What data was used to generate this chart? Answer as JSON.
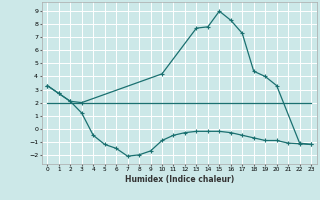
{
  "xlabel": "Humidex (Indice chaleur)",
  "xlim": [
    -0.5,
    23.5
  ],
  "ylim": [
    -2.7,
    9.7
  ],
  "yticks": [
    -2,
    -1,
    0,
    1,
    2,
    3,
    4,
    5,
    6,
    7,
    8,
    9
  ],
  "xticks": [
    0,
    1,
    2,
    3,
    4,
    5,
    6,
    7,
    8,
    9,
    10,
    11,
    12,
    13,
    14,
    15,
    16,
    17,
    18,
    19,
    20,
    21,
    22,
    23
  ],
  "bg_color": "#cce8e8",
  "grid_color": "#ffffff",
  "line_color": "#1a7070",
  "line1_x": [
    0,
    1,
    2,
    3,
    10,
    13,
    14,
    15,
    16,
    17,
    18,
    19,
    20,
    22,
    23
  ],
  "line1_y": [
    3.3,
    2.7,
    2.1,
    2.0,
    4.2,
    7.7,
    7.8,
    9.0,
    8.3,
    7.3,
    4.4,
    4.0,
    3.3,
    -1.1,
    -1.2
  ],
  "line2_x": [
    0,
    23
  ],
  "line2_y": [
    2.0,
    2.0
  ],
  "line3_x": [
    0,
    1,
    2,
    3,
    4,
    5,
    6,
    7,
    8,
    9,
    10,
    11,
    12,
    13,
    14,
    15,
    16,
    17,
    18,
    19,
    20,
    21,
    22,
    23
  ],
  "line3_y": [
    3.3,
    2.7,
    2.1,
    1.2,
    -0.5,
    -1.2,
    -1.5,
    -2.1,
    -2.0,
    -1.7,
    -0.9,
    -0.5,
    -0.3,
    -0.2,
    -0.2,
    -0.2,
    -0.3,
    -0.5,
    -0.7,
    -0.9,
    -0.9,
    -1.1,
    -1.15,
    -1.2
  ],
  "marker": "+",
  "markersize": 3,
  "linewidth": 0.9
}
